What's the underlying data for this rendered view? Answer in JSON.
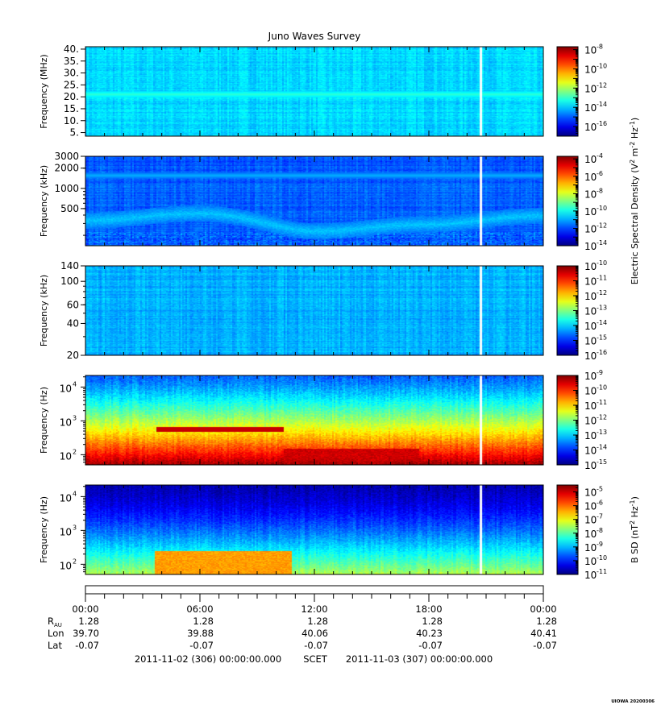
{
  "chart_data": {
    "type": "heatmap",
    "title": "Juno Waves Survey",
    "time_range": {
      "start": "2011-11-02T00:00:00",
      "end": "2011-11-03T00:00:00"
    },
    "data_gap": {
      "start": "2011-11-02T20:40:00",
      "end": "2011-11-02T20:45:00"
    },
    "panels": [
      {
        "id": "hfr-high",
        "ylabel": "Frequency (MHz)",
        "yscale": "linear",
        "ylim": [
          3.5,
          41
        ],
        "yticks": [
          {
            "v": 40,
            "t": "40."
          },
          {
            "v": 35,
            "t": "35."
          },
          {
            "v": 30,
            "t": "30."
          },
          {
            "v": 25,
            "t": "25."
          },
          {
            "v": 20,
            "t": "20."
          },
          {
            "v": 15,
            "t": "15."
          },
          {
            "v": 10,
            "t": "10."
          },
          {
            "v": 5,
            "t": "5."
          }
        ],
        "colorbar": {
          "scale": "log",
          "range_exp": [
            -17,
            -7.7
          ],
          "ticks_exp": [
            -8,
            -10,
            -12,
            -14,
            -16
          ]
        },
        "features": [
          {
            "kind": "band",
            "freq": 21,
            "level": 0.42
          },
          {
            "kind": "band",
            "freq": 8.5,
            "level": 0.3
          }
        ],
        "background_level": 0.34
      },
      {
        "id": "hfr-low",
        "ylabel": "Frequency (kHz)",
        "yscale": "log",
        "ylim": [
          140,
          3000
        ],
        "yticks": [
          {
            "v": 3000,
            "t": "3000"
          },
          {
            "v": 2000,
            "t": "2000"
          },
          {
            "v": 1000,
            "t": "1000"
          },
          {
            "v": 500,
            "t": "500"
          }
        ],
        "colorbar": {
          "scale": "log",
          "range_exp": [
            -14,
            -3.7
          ],
          "ticks_exp": [
            -4,
            -6,
            -8,
            -10,
            -12,
            -14
          ]
        },
        "features": [
          {
            "kind": "curve",
            "freq_at": [
              [
                0,
                330
              ],
              [
                6,
                420
              ],
              [
                12,
                230
              ],
              [
                18,
                290
              ],
              [
                24,
                390
              ]
            ],
            "level": 0.32
          },
          {
            "kind": "band",
            "freq": 1550,
            "level": 0.3
          }
        ],
        "background_level": 0.22
      },
      {
        "id": "lfr-high",
        "ylabel": "Frequency (kHz)",
        "yscale": "log",
        "ylim": [
          20,
          140
        ],
        "yticks": [
          {
            "v": 140,
            "t": "140"
          },
          {
            "v": 100,
            "t": "100"
          },
          {
            "v": 60,
            "t": "60"
          },
          {
            "v": 40,
            "t": "40"
          },
          {
            "v": 20,
            "t": "20"
          }
        ],
        "colorbar": {
          "scale": "log",
          "range_exp": [
            -16,
            -10
          ],
          "ticks_exp": [
            -10,
            -11,
            -12,
            -13,
            -14,
            -15,
            -16
          ]
        },
        "features": [],
        "background_level": 0.3
      },
      {
        "id": "lfr-low",
        "ylabel": "Frequency (Hz)",
        "yscale": "log",
        "ylim": [
          50,
          22000
        ],
        "yticks": [
          {
            "v": 10000,
            "b": "10",
            "e": "4"
          },
          {
            "v": 1000,
            "b": "10",
            "e": "3"
          },
          {
            "v": 100,
            "b": "10",
            "e": "2"
          }
        ],
        "colorbar": {
          "scale": "log",
          "range_exp": [
            -15,
            -9
          ],
          "ticks_exp": [
            -9,
            -10,
            -11,
            -12,
            -13,
            -14,
            -15
          ]
        },
        "features": [
          {
            "kind": "line",
            "freq": 560,
            "t_start": 3.7,
            "t_end": 10.4,
            "level": 0.93
          },
          {
            "kind": "block",
            "t_start": 10.4,
            "t_end": 17.5,
            "f_low": 50,
            "f_high": 150,
            "level": 0.92
          }
        ],
        "background_level": 0.45
      },
      {
        "id": "mag",
        "ylabel": "Frequency (Hz)",
        "yscale": "log",
        "ylim": [
          50,
          22000
        ],
        "yticks": [
          {
            "v": 10000,
            "b": "10",
            "e": "4"
          },
          {
            "v": 1000,
            "b": "10",
            "e": "3"
          },
          {
            "v": 100,
            "b": "10",
            "e": "2"
          }
        ],
        "colorbar": {
          "scale": "log",
          "range_exp": [
            -11,
            -4.5
          ],
          "ticks_exp": [
            -5,
            -6,
            -7,
            -8,
            -9,
            -10,
            -11
          ]
        },
        "features": [
          {
            "kind": "block",
            "t_start": 3.6,
            "t_end": 10.8,
            "f_low": 50,
            "f_high": 240,
            "level": 0.72
          }
        ],
        "background_level": 0.35
      }
    ],
    "colorbar_labels": [
      {
        "panels": [
          0,
          1,
          2
        ],
        "base": "Electric Spectral Density (V",
        "sup1": "2",
        "mid": " m",
        "sup2": "-2",
        "mid2": " Hz",
        "sup3": "-1",
        "end": ")"
      },
      {
        "panels": [
          4
        ],
        "base": "B SD (nT",
        "sup1": "2",
        "mid": " Hz",
        "sup2": "-1",
        "mid2": "",
        "sup3": "",
        "end": ")"
      }
    ],
    "xaxis": {
      "ticks": [
        {
          "hour": 0,
          "label": "00:00"
        },
        {
          "hour": 6,
          "label": "06:00"
        },
        {
          "hour": 12,
          "label": "12:00"
        },
        {
          "hour": 18,
          "label": "18:00"
        },
        {
          "hour": 24,
          "label": "00:00"
        }
      ],
      "minor_step_hours": 1
    },
    "ephemeris": {
      "labels": [
        {
          "base": "R",
          "sub": "AU"
        },
        {
          "base": "Lon",
          "sub": ""
        },
        {
          "base": "Lat",
          "sub": ""
        }
      ],
      "rows": [
        [
          "1.28",
          "1.28",
          "1.28",
          "1.28",
          "1.28"
        ],
        [
          "39.70",
          "39.88",
          "40.06",
          "40.23",
          "40.41"
        ],
        [
          "-0.07",
          "-0.07",
          "-0.07",
          "-0.07",
          "-0.07"
        ]
      ]
    },
    "footer": {
      "start": "2011-11-02 (306) 00:00:00.000",
      "scet": "SCET",
      "end": "2011-11-03 (307) 00:00:00.000"
    },
    "credit": "UIOWA 20200306"
  }
}
